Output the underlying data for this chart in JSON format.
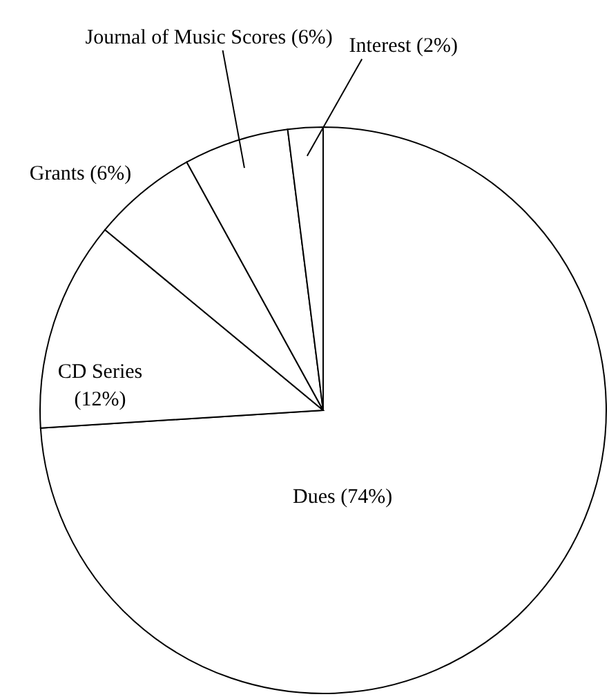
{
  "chart_data": {
    "type": "pie",
    "categories": [
      "Dues",
      "CD Series",
      "Grants",
      "Journal of Music Scores",
      "Interest"
    ],
    "values": [
      74,
      12,
      6,
      6,
      2
    ],
    "value_labels": [
      "(74%)",
      "(12%)",
      "(6%)",
      "(6%)",
      "(2%)"
    ],
    "colors": [
      "#ffffff",
      "#ffffff",
      "#ffffff",
      "#ffffff",
      "#ffffff"
    ]
  }
}
